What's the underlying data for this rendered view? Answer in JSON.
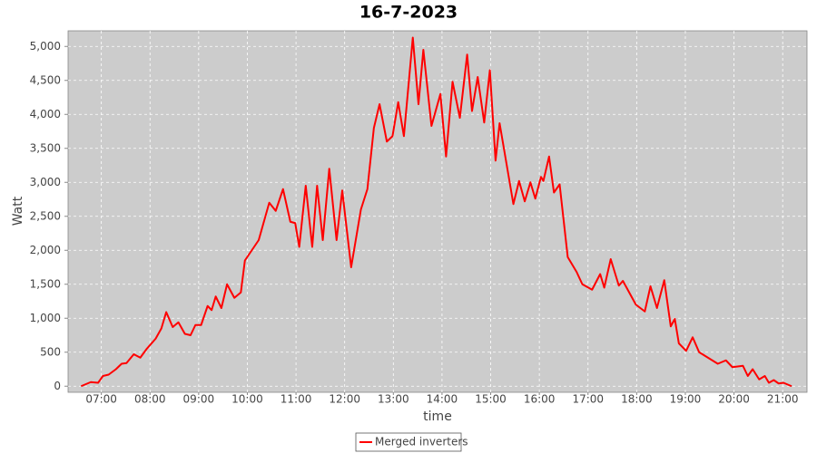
{
  "chart_data": {
    "type": "line",
    "title": "16-7-2023",
    "x_label": "time",
    "y_label": "Watt",
    "x": [
      "06:35",
      "06:47",
      "06:56",
      "07:02",
      "07:09",
      "07:18",
      "07:25",
      "07:31",
      "07:40",
      "07:48",
      "07:56",
      "08:07",
      "08:14",
      "08:20",
      "08:28",
      "08:35",
      "08:43",
      "08:50",
      "08:56",
      "09:03",
      "09:11",
      "09:16",
      "09:21",
      "09:28",
      "09:35",
      "09:44",
      "09:52",
      "09:57",
      "10:14",
      "10:27",
      "10:35",
      "10:44",
      "10:53",
      "10:59",
      "11:04",
      "11:12",
      "11:20",
      "11:26",
      "11:33",
      "11:41",
      "11:50",
      "11:57",
      "12:08",
      "12:20",
      "12:28",
      "12:36",
      "12:43",
      "12:52",
      "12:59",
      "13:06",
      "13:13",
      "13:24",
      "13:31",
      "13:37",
      "13:47",
      "13:58",
      "14:05",
      "14:13",
      "14:22",
      "14:31",
      "14:37",
      "14:44",
      "14:52",
      "14:59",
      "15:06",
      "15:11",
      "15:28",
      "15:35",
      "15:42",
      "15:49",
      "15:55",
      "16:02",
      "16:05",
      "16:12",
      "16:18",
      "16:25",
      "16:35",
      "16:46",
      "16:53",
      "17:05",
      "17:15",
      "17:20",
      "17:28",
      "17:38",
      "17:43",
      "17:59",
      "18:10",
      "18:17",
      "18:25",
      "18:34",
      "18:42",
      "18:47",
      "18:52",
      "19:01",
      "19:09",
      "19:17",
      "19:40",
      "19:50",
      "19:58",
      "20:11",
      "20:17",
      "20:23",
      "20:31",
      "20:38",
      "20:43",
      "20:49",
      "20:55",
      "21:01",
      "21:11"
    ],
    "series": [
      {
        "name": "Merged inverters",
        "color": "#ff0000",
        "values": [
          0,
          60,
          50,
          150,
          170,
          250,
          330,
          340,
          470,
          420,
          550,
          700,
          850,
          1090,
          870,
          940,
          770,
          750,
          900,
          900,
          1180,
          1120,
          1320,
          1150,
          1500,
          1300,
          1380,
          1850,
          2150,
          2700,
          2580,
          2900,
          2420,
          2400,
          2050,
          2950,
          2050,
          2950,
          2150,
          3200,
          2150,
          2880,
          1750,
          2600,
          2900,
          3800,
          4150,
          3600,
          3680,
          4180,
          3680,
          5130,
          4150,
          4950,
          3830,
          4300,
          3380,
          4480,
          3950,
          4880,
          4050,
          4550,
          3880,
          4650,
          3320,
          3870,
          2680,
          3020,
          2720,
          3000,
          2760,
          3080,
          3020,
          3380,
          2850,
          2970,
          1900,
          1680,
          1500,
          1420,
          1650,
          1450,
          1870,
          1480,
          1550,
          1200,
          1100,
          1470,
          1150,
          1560,
          880,
          990,
          630,
          520,
          720,
          500,
          330,
          380,
          280,
          300,
          150,
          250,
          100,
          150,
          50,
          90,
          40,
          50,
          0
        ]
      }
    ],
    "xlim": [
      "06:19",
      "21:30"
    ],
    "xticks": [
      "07:00",
      "08:00",
      "09:00",
      "10:00",
      "11:00",
      "12:00",
      "13:00",
      "14:00",
      "15:00",
      "16:00",
      "17:00",
      "18:00",
      "19:00",
      "20:00",
      "21:00"
    ],
    "ylim": [
      -90,
      5230
    ],
    "yticks": [
      0,
      500,
      {
        "value": 1000,
        "label": "1,000"
      },
      {
        "value": 1500,
        "label": "1,500"
      },
      {
        "value": 2000,
        "label": "2,000"
      },
      {
        "value": 2500,
        "label": "2,500"
      },
      {
        "value": 3000,
        "label": "3,000"
      },
      {
        "value": 3500,
        "label": "3,500"
      },
      {
        "value": 4000,
        "label": "4,000"
      },
      {
        "value": 4500,
        "label": "4,500"
      },
      {
        "value": 5000,
        "label": "5,000"
      }
    ],
    "grid": true
  }
}
